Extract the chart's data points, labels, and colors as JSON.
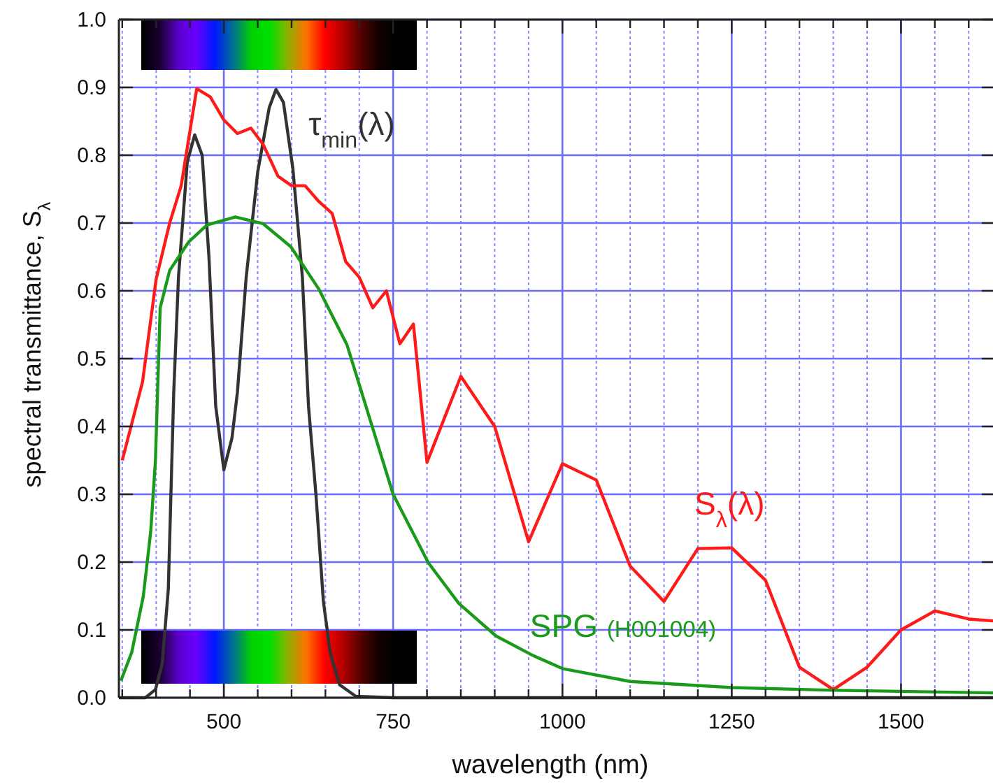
{
  "chart_data": {
    "type": "line",
    "xlabel": "wavelength (nm)",
    "ylabel": "spectral transmittance, S$_{λ}$",
    "xlim": [
      345,
      1640
    ],
    "ylim": [
      0,
      1
    ],
    "xticks": [
      {
        "value": 350,
        "label": null
      },
      {
        "value": 400,
        "label": null
      },
      {
        "value": 450,
        "label": null
      },
      500,
      {
        "value": 550,
        "label": null
      },
      {
        "value": 600,
        "label": null
      },
      {
        "value": 650,
        "label": null
      },
      {
        "value": 700,
        "label": null
      },
      750,
      {
        "value": 800,
        "label": null
      },
      {
        "value": 850,
        "label": null
      },
      {
        "value": 900,
        "label": null
      },
      {
        "value": 950,
        "label": null
      },
      1000,
      {
        "value": 1050,
        "label": null
      },
      {
        "value": 1100,
        "label": null
      },
      {
        "value": 1150,
        "label": null
      },
      {
        "value": 1200,
        "label": null
      },
      1250,
      {
        "value": 1300,
        "label": null
      },
      {
        "value": 1350,
        "label": null
      },
      {
        "value": 1400,
        "label": null
      },
      {
        "value": 1450,
        "label": null
      },
      1500,
      {
        "value": 1550,
        "label": null
      },
      {
        "value": 1600,
        "label": null
      }
    ],
    "yticks": [
      {
        "value": 0,
        "label": "0.0"
      },
      0.1,
      0.2,
      0.3,
      0.4,
      0.5,
      0.6,
      0.7,
      0.8,
      0.9,
      {
        "value": 1,
        "label": "1.0"
      }
    ],
    "grid": true,
    "marker": "none",
    "line_style": "solid",
    "series": [
      {
        "name": "τ$_{min}$(λ)",
        "color": "#333333",
        "x": [
          345,
          384,
          399,
          409,
          418,
          426,
          433,
          446,
          457,
          468,
          478,
          488,
          500,
          512,
          520,
          533,
          550,
          567,
          577,
          588,
          602,
          616,
          625,
          636,
          647,
          657,
          671,
          695,
          750,
          1000,
          1640
        ],
        "values": [
          0,
          0,
          0.012,
          0.05,
          0.16,
          0.45,
          0.62,
          0.79,
          0.83,
          0.8,
          0.65,
          0.43,
          0.336,
          0.383,
          0.45,
          0.62,
          0.775,
          0.87,
          0.897,
          0.878,
          0.78,
          0.62,
          0.43,
          0.3,
          0.142,
          0.067,
          0.019,
          0.002,
          0,
          0,
          0
        ]
      },
      {
        "name": "S$_{λ}$(λ)",
        "color": "#ff1a1a",
        "x": [
          350,
          380,
          400,
          420,
          437,
          460,
          480,
          500,
          520,
          540,
          558,
          580,
          600,
          620,
          640,
          660,
          680,
          700,
          720,
          740,
          760,
          780,
          800,
          850,
          900,
          950,
          1000,
          1050,
          1100,
          1150,
          1200,
          1250,
          1300,
          1350,
          1400,
          1450,
          1500,
          1550,
          1600,
          1640
        ],
        "values": [
          0.35,
          0.466,
          0.617,
          0.7,
          0.755,
          0.898,
          0.886,
          0.852,
          0.832,
          0.84,
          0.816,
          0.769,
          0.755,
          0.755,
          0.732,
          0.714,
          0.643,
          0.62,
          0.575,
          0.6,
          0.522,
          0.551,
          0.347,
          0.474,
          0.4,
          0.23,
          0.345,
          0.321,
          0.194,
          0.142,
          0.22,
          0.221,
          0.173,
          0.045,
          0.012,
          0.045,
          0.1,
          0.128,
          0.116,
          0.113
        ]
      },
      {
        "name": "SPG (H001004)",
        "color": "#1a9a1a",
        "x": [
          348,
          364,
          381,
          392,
          399,
          406,
          420,
          448,
          475,
          517,
          558,
          599,
          640,
          682,
          716,
          750,
          802,
          847,
          902,
          957,
          1000,
          1100,
          1250,
          1400,
          1640
        ],
        "values": [
          0.025,
          0.067,
          0.149,
          0.245,
          0.35,
          0.575,
          0.63,
          0.672,
          0.697,
          0.709,
          0.699,
          0.665,
          0.603,
          0.52,
          0.41,
          0.3,
          0.199,
          0.139,
          0.091,
          0.062,
          0.043,
          0.024,
          0.015,
          0.011,
          0.007
        ]
      }
    ]
  }
}
